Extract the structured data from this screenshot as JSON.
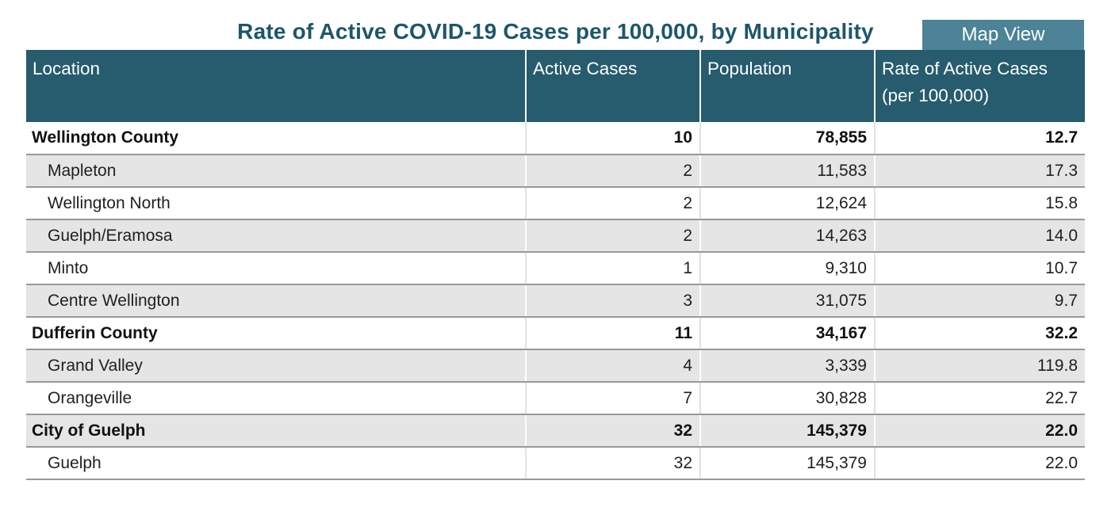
{
  "title": "Rate of Active COVID-19 Cases per 100,000, by Municipality",
  "map_view_button": {
    "label": "Map View"
  },
  "colors": {
    "header_bg": "#265C6D",
    "title_text": "#1D566B",
    "button_bg": "#4C8396",
    "alt_row_bg": "#E5E5E5",
    "row_border": "#98989E"
  },
  "table": {
    "columns": [
      "Location",
      "Active Cases",
      "Population",
      "Rate of Active Cases (per 100,000)"
    ],
    "rows": [
      {
        "location": "Wellington County",
        "active_cases": "10",
        "population": "78,855",
        "rate": "12.7",
        "level": "county"
      },
      {
        "location": "Mapleton",
        "active_cases": "2",
        "population": "11,583",
        "rate": "17.3",
        "level": "municipality"
      },
      {
        "location": "Wellington North",
        "active_cases": "2",
        "population": "12,624",
        "rate": "15.8",
        "level": "municipality"
      },
      {
        "location": "Guelph/Eramosa",
        "active_cases": "2",
        "population": "14,263",
        "rate": "14.0",
        "level": "municipality"
      },
      {
        "location": "Minto",
        "active_cases": "1",
        "population": "9,310",
        "rate": "10.7",
        "level": "municipality"
      },
      {
        "location": "Centre Wellington",
        "active_cases": "3",
        "population": "31,075",
        "rate": "9.7",
        "level": "municipality"
      },
      {
        "location": "Dufferin County",
        "active_cases": "11",
        "population": "34,167",
        "rate": "32.2",
        "level": "county"
      },
      {
        "location": "Grand Valley",
        "active_cases": "4",
        "population": "3,339",
        "rate": "119.8",
        "level": "municipality"
      },
      {
        "location": "Orangeville",
        "active_cases": "7",
        "population": "30,828",
        "rate": "22.7",
        "level": "municipality"
      },
      {
        "location": "City of Guelph",
        "active_cases": "32",
        "population": "145,379",
        "rate": "22.0",
        "level": "county"
      },
      {
        "location": "Guelph",
        "active_cases": "32",
        "population": "145,379",
        "rate": "22.0",
        "level": "municipality"
      }
    ]
  },
  "chart_data": {
    "type": "table",
    "title": "Rate of Active COVID-19 Cases per 100,000, by Municipality",
    "columns": [
      "Location",
      "Active Cases",
      "Population",
      "Rate of Active Cases (per 100,000)"
    ],
    "rows": [
      [
        "Wellington County",
        10,
        78855,
        12.7
      ],
      [
        "Mapleton",
        2,
        11583,
        17.3
      ],
      [
        "Wellington North",
        2,
        12624,
        15.8
      ],
      [
        "Guelph/Eramosa",
        2,
        14263,
        14.0
      ],
      [
        "Minto",
        1,
        9310,
        10.7
      ],
      [
        "Centre Wellington",
        3,
        31075,
        9.7
      ],
      [
        "Dufferin County",
        11,
        34167,
        32.2
      ],
      [
        "Grand Valley",
        4,
        3339,
        119.8
      ],
      [
        "Orangeville",
        7,
        30828,
        22.7
      ],
      [
        "City of Guelph",
        32,
        145379,
        22.0
      ],
      [
        "Guelph",
        32,
        145379,
        22.0
      ]
    ]
  }
}
